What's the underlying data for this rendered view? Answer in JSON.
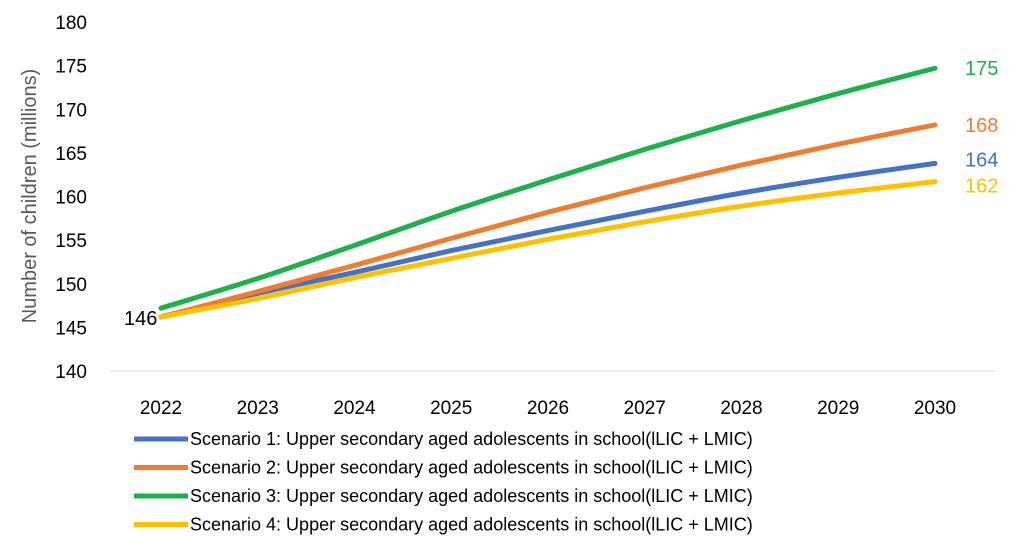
{
  "chart_data": {
    "type": "line",
    "title": "",
    "xlabel": "",
    "ylabel": "Number of children (millions)",
    "ylim": [
      140,
      180
    ],
    "yticks": [
      140,
      145,
      150,
      155,
      160,
      165,
      170,
      175,
      180
    ],
    "grid": false,
    "legend_position": "bottom",
    "x": [
      2022,
      2023,
      2024,
      2025,
      2026,
      2027,
      2028,
      2029,
      2030
    ],
    "series": [
      {
        "name": "Scenario 1: Upper secondary aged adolescents in school(lLIC + LMIC)",
        "color": "#4472C4",
        "values": [
          146.2,
          148.9,
          151.3,
          153.8,
          156.1,
          158.3,
          160.4,
          162.2,
          163.8
        ],
        "end_label": "164"
      },
      {
        "name": "Scenario 2: Upper secondary aged adolescents in school(lLIC + LMIC)",
        "color": "#ED7D31",
        "values": [
          146.2,
          149.1,
          152.1,
          155.2,
          158.2,
          161.0,
          163.6,
          166.0,
          168.2
        ],
        "end_label": "168"
      },
      {
        "name": "Scenario 3: Upper secondary aged adolescents in school(lLIC + LMIC)",
        "color": "#1DB04B",
        "values": [
          147.2,
          150.6,
          154.4,
          158.3,
          161.9,
          165.4,
          168.7,
          171.8,
          174.7
        ],
        "end_label": "175"
      },
      {
        "name": "Scenario 4: Upper secondary aged adolescents in school(lLIC + LMIC)",
        "color": "#FFC000",
        "values": [
          146.2,
          148.3,
          150.7,
          152.9,
          155.1,
          157.1,
          158.9,
          160.4,
          161.7
        ],
        "end_label": "162"
      }
    ],
    "annotations": [
      {
        "text": "146",
        "x": 2022,
        "y": 146.2
      }
    ]
  }
}
